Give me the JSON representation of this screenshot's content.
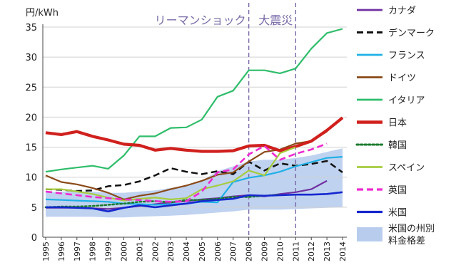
{
  "chart_data": {
    "type": "line",
    "ylabel": "円/kWh",
    "ylim": [
      0,
      35
    ],
    "yticks": [
      0,
      5,
      10,
      15,
      20,
      25,
      30,
      35
    ],
    "grid": "horizontal",
    "legend_position": "right",
    "x": [
      "1995",
      "1996",
      "1997",
      "1998",
      "1999",
      "2000",
      "2001",
      "2002",
      "2003",
      "2004",
      "2005",
      "2006",
      "2007",
      "2008",
      "2009",
      "2010",
      "2011",
      "2012",
      "2013",
      "2014"
    ],
    "annotations": [
      {
        "text": "リーマンショック",
        "x": "2008"
      },
      {
        "text": "大震災",
        "x": "2011"
      }
    ],
    "band": {
      "name": "米国の州別料金格差",
      "name_lines": [
        "米国の州別",
        "料金格差"
      ],
      "color": "#b8cdee",
      "upper": [
        7.5,
        7.6,
        7.6,
        7.6,
        7.4,
        7.4,
        7.6,
        7.8,
        8.2,
        8.6,
        9.4,
        11.0,
        11.8,
        12.6,
        12.9,
        12.9,
        13.2,
        13.6,
        14.2,
        14.8
      ],
      "lower": [
        3.4,
        3.4,
        3.4,
        3.4,
        3.3,
        3.3,
        3.4,
        3.5,
        3.6,
        3.7,
        3.9,
        4.1,
        4.3,
        4.6,
        4.6,
        4.6,
        4.7,
        4.8,
        4.9,
        5.0
      ]
    },
    "series": [
      {
        "name": "カナダ",
        "color": "#7030a0",
        "style": "solid",
        "width": 2.2,
        "values": [
          4.9,
          4.9,
          4.9,
          4.8,
          4.7,
          4.9,
          5.2,
          5.5,
          5.8,
          6.0,
          6.3,
          6.5,
          6.8,
          7.0,
          6.8,
          7.2,
          7.5,
          8.0,
          9.4,
          null
        ]
      },
      {
        "name": "デンマーク",
        "color": "#111111",
        "style": "dash",
        "width": 2.5,
        "values": [
          8.0,
          7.9,
          7.7,
          7.8,
          8.5,
          8.7,
          9.3,
          10.3,
          11.5,
          10.9,
          10.5,
          11.0,
          10.5,
          12.6,
          11.1,
          12.3,
          11.9,
          12.2,
          12.7,
          10.8
        ]
      },
      {
        "name": "フランス",
        "color": "#1fb0e6",
        "style": "solid",
        "width": 2.2,
        "values": [
          6.3,
          6.2,
          6.1,
          6.0,
          5.9,
          5.6,
          5.5,
          5.4,
          5.5,
          5.6,
          5.9,
          5.8,
          9.2,
          9.9,
          10.3,
          10.9,
          11.8,
          12.5,
          13.2,
          13.4
        ]
      },
      {
        "name": "ドイツ",
        "color": "#8a4a18",
        "style": "solid",
        "width": 2.2,
        "values": [
          10.3,
          9.2,
          8.8,
          8.2,
          7.4,
          6.3,
          6.9,
          7.3,
          8.0,
          8.6,
          9.4,
          10.4,
          10.8,
          12.6,
          14.2,
          14.6,
          15.6,
          16.0,
          17.6,
          null
        ]
      },
      {
        "name": "イタリア",
        "color": "#2ebd6a",
        "style": "solid",
        "width": 2.2,
        "values": [
          10.9,
          11.3,
          11.6,
          11.9,
          11.4,
          13.6,
          16.8,
          16.8,
          18.2,
          18.3,
          19.6,
          23.4,
          24.4,
          27.8,
          27.8,
          27.3,
          28.1,
          31.4,
          34.0,
          34.7
        ]
      },
      {
        "name": "日本",
        "color": "#d0201d",
        "style": "solid",
        "width": 4.2,
        "values": [
          17.4,
          17.1,
          17.6,
          16.8,
          16.2,
          15.5,
          15.3,
          14.5,
          14.8,
          14.5,
          14.3,
          14.3,
          14.4,
          15.2,
          15.3,
          14.4,
          15.1,
          16.0,
          17.8,
          19.9
        ]
      },
      {
        "name": "韓国",
        "color": "#1a7a2c",
        "style": "dot",
        "width": 2.5,
        "values": [
          5.0,
          5.1,
          5.1,
          5.2,
          5.4,
          5.6,
          5.9,
          6.0,
          5.8,
          6.2,
          6.2,
          6.4,
          6.7,
          6.7,
          6.9,
          7.1,
          null,
          null,
          null,
          null
        ]
      },
      {
        "name": "スペイン",
        "color": "#a6cc3e",
        "style": "solid",
        "width": 2.2,
        "values": [
          8.0,
          8.0,
          7.6,
          7.2,
          6.6,
          6.1,
          6.4,
          6.6,
          6.3,
          6.5,
          8.0,
          8.6,
          9.3,
          11.1,
          10.3,
          14.0,
          15.0,
          null,
          null,
          null
        ]
      },
      {
        "name": "英国",
        "color": "#ef2bd0",
        "style": "dash",
        "width": 2.6,
        "values": [
          7.6,
          7.3,
          7.0,
          6.7,
          6.5,
          6.3,
          6.2,
          6.0,
          5.9,
          6.0,
          7.6,
          10.8,
          11.3,
          13.8,
          15.2,
          12.9,
          13.9,
          14.6,
          15.6,
          null
        ]
      },
      {
        "name": "米国",
        "color": "#1528cf",
        "style": "solid",
        "width": 2.6,
        "values": [
          5.0,
          5.0,
          4.9,
          4.8,
          4.3,
          4.9,
          5.3,
          5.0,
          5.3,
          5.6,
          6.0,
          6.2,
          6.4,
          7.0,
          6.9,
          7.0,
          7.1,
          7.1,
          7.2,
          7.5
        ]
      }
    ]
  }
}
